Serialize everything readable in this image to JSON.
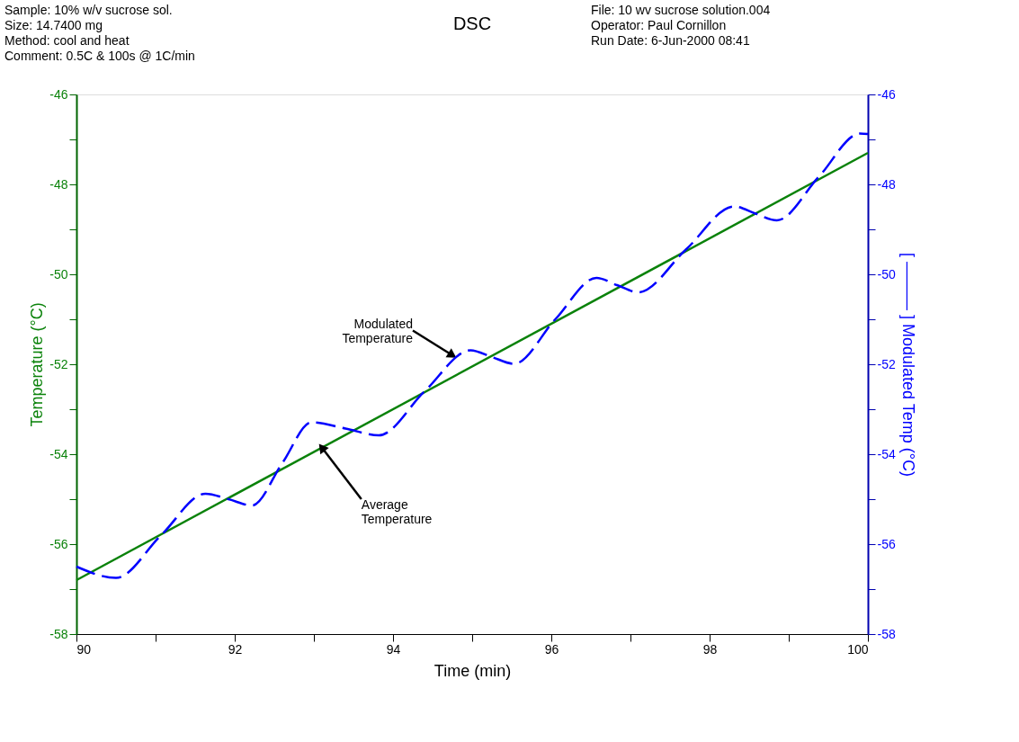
{
  "chart_data": {
    "type": "line",
    "title": "DSC",
    "xlabel": "Time (min)",
    "ylabel": "Temperature (°C)",
    "y2label": "[ ——— ] Modulated Temp (°C)",
    "xlim": [
      90,
      100
    ],
    "xticks": [
      90,
      {
        "value": 91,
        "label": null
      },
      92,
      {
        "value": 93,
        "label": null
      },
      94,
      {
        "value": 95,
        "label": null
      },
      96,
      {
        "value": 97,
        "label": null
      },
      98,
      {
        "value": 99,
        "label": null
      },
      100
    ],
    "ylim": [
      -58,
      -46
    ],
    "yticks": [
      -58,
      {
        "value": -57,
        "label": null
      },
      -56,
      {
        "value": -55,
        "label": null
      },
      -54,
      {
        "value": -53,
        "label": null
      },
      -52,
      {
        "value": -51,
        "label": null
      },
      -50,
      {
        "value": -49,
        "label": null
      },
      -48,
      {
        "value": -47,
        "label": null
      },
      -46
    ],
    "y2lim": [
      -58,
      -46
    ],
    "y2ticks": [
      -58,
      {
        "value": -57,
        "label": null
      },
      -56,
      {
        "value": -55,
        "label": null
      },
      -54,
      {
        "value": -53,
        "label": null
      },
      -52,
      {
        "value": -51,
        "label": null
      },
      -50,
      {
        "value": -49,
        "label": null
      },
      -48,
      {
        "value": -47,
        "label": null
      },
      -46
    ],
    "grid": false,
    "series": [
      {
        "color": "#0a820a",
        "line_style": "solid",
        "x": [
          90,
          100
        ],
        "values": [
          -56.8,
          -47.3
        ]
      },
      {
        "color": "#0000ff",
        "line_style": "dashed",
        "axis": "y2",
        "x": [
          90.0,
          90.5,
          91.07,
          91.63,
          91.92,
          92.22,
          92.6,
          92.97,
          93.4,
          93.82,
          94.4,
          94.98,
          95.25,
          95.53,
          96.05,
          96.57,
          96.83,
          97.1,
          97.7,
          98.31,
          98.58,
          98.85,
          99.38,
          99.9,
          100.0
        ],
        "values": [
          -56.5,
          -56.75,
          -55.8,
          -54.88,
          -55.0,
          -55.14,
          -54.2,
          -53.29,
          -53.43,
          -53.58,
          -52.6,
          -51.69,
          -51.84,
          -51.99,
          -51.0,
          -50.08,
          -50.24,
          -50.4,
          -49.45,
          -48.49,
          -48.65,
          -48.8,
          -47.83,
          -46.87,
          -46.88
        ]
      }
    ],
    "annotations": [
      "Sample: 10% w/v sucrose sol.",
      "Size:   14.7400 mg",
      "Method: cool and heat",
      "Comment: 0.5C & 100s @ 1C/min",
      "File: 10 wv sucrose solution.004",
      "Operator: Paul Cornillon",
      "Run Date: 6-Jun-2000 08:41",
      {
        "text": "Modulated\nTemperature",
        "x": 94.75,
        "y": -51.8
      },
      {
        "text": "Average\nTemperature",
        "x": 93.1,
        "y": -53.85
      }
    ]
  }
}
